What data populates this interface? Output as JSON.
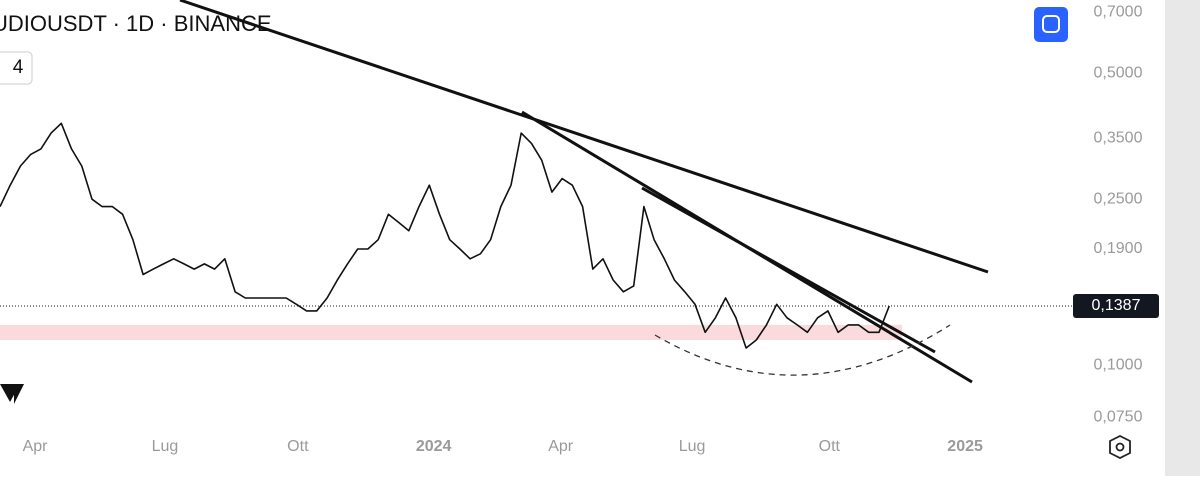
{
  "chart_data": {
    "type": "line",
    "title": "UDIOUSDT · 1D · BINANCE",
    "indicator_count": "4",
    "x": [
      0,
      7,
      14,
      21,
      28,
      35,
      42,
      49,
      56,
      63,
      70,
      77,
      84,
      91,
      98,
      105,
      112,
      119,
      126,
      133,
      140,
      147,
      154,
      161,
      168,
      175,
      182,
      189,
      196,
      203,
      210,
      217,
      224,
      231,
      238,
      245,
      252,
      259,
      266,
      273,
      280,
      287,
      294,
      301,
      308,
      315,
      322,
      329,
      336,
      343,
      350,
      357,
      364,
      371,
      378,
      385,
      392,
      399,
      406,
      413,
      420,
      427,
      434,
      441,
      448,
      455,
      462,
      469,
      476,
      483,
      490,
      497,
      504,
      511,
      518,
      525,
      532,
      539,
      546,
      553,
      560,
      567,
      574,
      581,
      588,
      595,
      602,
      609
    ],
    "values": [
      0.24,
      0.27,
      0.3,
      0.32,
      0.33,
      0.36,
      0.38,
      0.33,
      0.3,
      0.25,
      0.24,
      0.24,
      0.23,
      0.2,
      0.165,
      0.17,
      0.175,
      0.18,
      0.175,
      0.17,
      0.175,
      0.17,
      0.18,
      0.15,
      0.145,
      0.145,
      0.145,
      0.145,
      0.145,
      0.14,
      0.135,
      0.135,
      0.145,
      0.16,
      0.175,
      0.19,
      0.19,
      0.2,
      0.23,
      0.22,
      0.21,
      0.24,
      0.27,
      0.23,
      0.2,
      0.19,
      0.18,
      0.185,
      0.2,
      0.24,
      0.27,
      0.36,
      0.34,
      0.31,
      0.26,
      0.28,
      0.27,
      0.24,
      0.17,
      0.18,
      0.16,
      0.15,
      0.155,
      0.24,
      0.2,
      0.18,
      0.16,
      0.15,
      0.14,
      0.12,
      0.13,
      0.145,
      0.13,
      0.11,
      0.115,
      0.125,
      0.14,
      0.13,
      0.125,
      0.12,
      0.13,
      0.135,
      0.12,
      0.125,
      0.125,
      0.12,
      0.12,
      0.1387
    ],
    "color": "#111111",
    "log_scale": true,
    "xlim": [
      0,
      726
    ],
    "xticks": [
      {
        "value": 24,
        "label": "Apr"
      },
      {
        "value": 113,
        "label": "Lug"
      },
      {
        "value": 204,
        "label": "Ott"
      },
      {
        "value": 297,
        "label": "2024"
      },
      {
        "value": 384,
        "label": "Apr"
      },
      {
        "value": 474,
        "label": "Lug"
      },
      {
        "value": 568,
        "label": "Ott"
      },
      {
        "value": 661,
        "label": "2025"
      }
    ],
    "ylim": [
      0.07,
      0.75
    ],
    "yticks": [
      {
        "value": 0.7,
        "label": "0,7000"
      },
      {
        "value": 0.5,
        "label": "0,5000"
      },
      {
        "value": 0.35,
        "label": "0,3500"
      },
      {
        "value": 0.25,
        "label": "0,2500"
      },
      {
        "value": 0.19,
        "label": "0,1900"
      },
      {
        "value": 0.1,
        "label": "0,1000"
      },
      {
        "value": 0.075,
        "label": "0,0750"
      }
    ],
    "last_price": {
      "value": 0.1387,
      "label": "0,1387"
    },
    "support_zone": [
      0.115,
      0.125
    ]
  }
}
